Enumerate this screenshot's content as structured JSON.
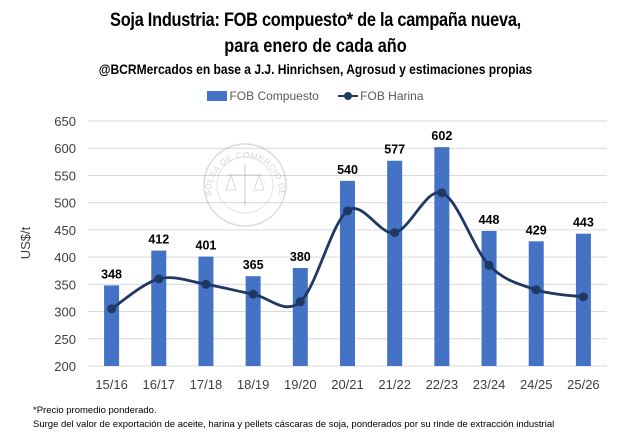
{
  "chart_data": {
    "type": "bar",
    "title": "Soja Industria: FOB compuesto* de la campaña nueva,",
    "title_line2": "para enero de cada año",
    "subtitle": "@BCRMercados en base a J.J. Hinrichsen, Agrosud y estimaciones propias",
    "xlabel": "",
    "ylabel": "US$/t",
    "ylim": [
      200,
      650
    ],
    "yticks": [
      200,
      250,
      300,
      350,
      400,
      450,
      500,
      550,
      600,
      650
    ],
    "grid": true,
    "legend_position": "top",
    "categories": [
      "15/16",
      "16/17",
      "17/18",
      "18/19",
      "19/20",
      "20/21",
      "21/22",
      "22/23",
      "23/24",
      "24/25",
      "25/26"
    ],
    "series": [
      {
        "name": "FOB Compuesto",
        "type": "bar",
        "color": "#4472C4",
        "values": [
          348,
          412,
          401,
          365,
          380,
          540,
          577,
          602,
          448,
          429,
          443
        ],
        "data_labels": true
      },
      {
        "name": "FOB Harina",
        "type": "line",
        "color": "#1F3864",
        "values": [
          305,
          360,
          350,
          332,
          318,
          485,
          445,
          518,
          385,
          340,
          327
        ],
        "data_labels": false
      }
    ],
    "watermark": "BOLSA DE COMERCIO DE ROSARIO"
  },
  "footnotes": [
    "*Precio promedio  ponderado.",
    "Surge del valor de exportación de aceite, harina y pellets cáscaras de soja, ponderados por su rinde de extracción industrial"
  ]
}
